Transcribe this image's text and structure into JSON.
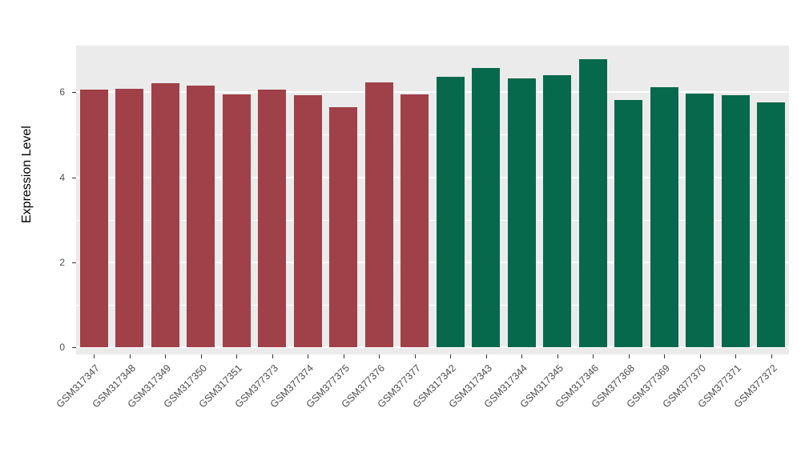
{
  "chart_data": {
    "type": "bar",
    "title": "",
    "xlabel": "",
    "ylabel": "Expression Level",
    "categories": [
      "GSM317347",
      "GSM317348",
      "GSM317349",
      "GSM317350",
      "GSM317351",
      "GSM377373",
      "GSM377374",
      "GSM377375",
      "GSM377376",
      "GSM377377",
      "GSM317342",
      "GSM317343",
      "GSM317344",
      "GSM317345",
      "GSM317346",
      "GSM377368",
      "GSM377369",
      "GSM377370",
      "GSM377371",
      "GSM377372"
    ],
    "values": [
      6.07,
      6.09,
      6.22,
      6.15,
      5.96,
      6.07,
      5.94,
      5.65,
      6.24,
      5.96,
      6.37,
      6.58,
      6.32,
      6.41,
      6.78,
      5.82,
      6.13,
      5.97,
      5.94,
      5.76
    ],
    "groups": [
      "red",
      "red",
      "red",
      "red",
      "red",
      "red",
      "red",
      "red",
      "red",
      "red",
      "green",
      "green",
      "green",
      "green",
      "green",
      "green",
      "green",
      "green",
      "green",
      "green"
    ],
    "colors": {
      "red": "#A04048",
      "green": "#07694B"
    },
    "yticks": [
      0,
      2,
      4,
      6
    ],
    "minor_ticks": [
      1,
      3,
      5
    ],
    "value_range": [
      -0.17,
      7.1
    ],
    "bar_width_ratio": 0.78,
    "panel_bg": "#EBEBEB",
    "grid_color": "#FFFFFF",
    "tick_label_color": "#4D4D4D",
    "legend": "none",
    "grid": "on"
  }
}
